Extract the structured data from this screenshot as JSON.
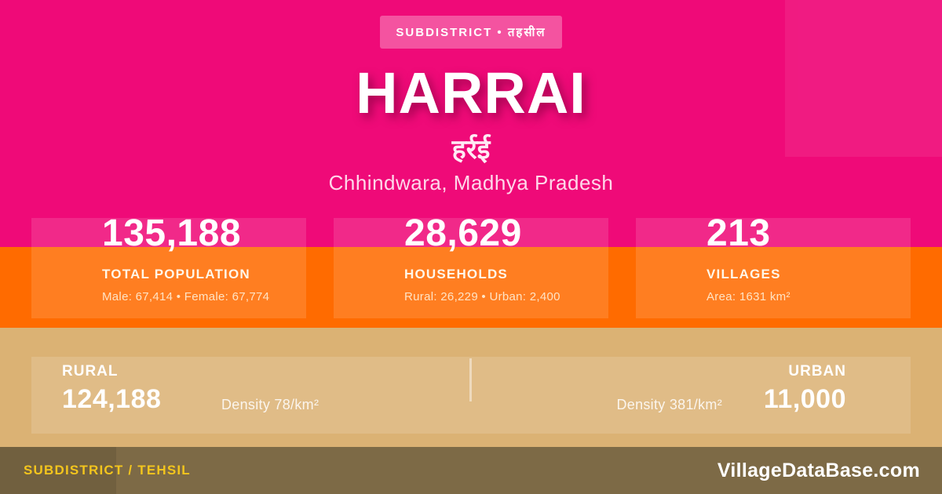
{
  "badge": {
    "label": "SUBDISTRICT • तहसील"
  },
  "title": "HARRAI",
  "title_hindi": "हर्रई",
  "location": "Chhindwara, Madhya Pradesh",
  "stats": [
    {
      "value": "135,188",
      "label": "TOTAL POPULATION",
      "detail": "Male: 67,414 • Female: 67,774"
    },
    {
      "value": "28,629",
      "label": "HOUSEHOLDS",
      "detail": "Rural: 26,229 • Urban: 2,400"
    },
    {
      "value": "213",
      "label": "VILLAGES",
      "detail": "Area: 1631 km²"
    }
  ],
  "split": {
    "rural_label": "RURAL",
    "rural_value": "124,188",
    "rural_density": "Density 78/km²",
    "urban_label": "URBAN",
    "urban_value": "11,000",
    "urban_density": "Density 381/km²"
  },
  "footer": {
    "left": "SUBDISTRICT / TEHSIL",
    "right": "VillageDataBase.com"
  },
  "colors": {
    "background_pink": "#EF0A78",
    "band_orange": "#FF6B00",
    "band_tan": "#DBB274",
    "footer_brown": "#7D6A46",
    "footer_yellow": "#F3C51D",
    "badge_pink": "#F4549E",
    "title_shadow": "#82023E"
  }
}
